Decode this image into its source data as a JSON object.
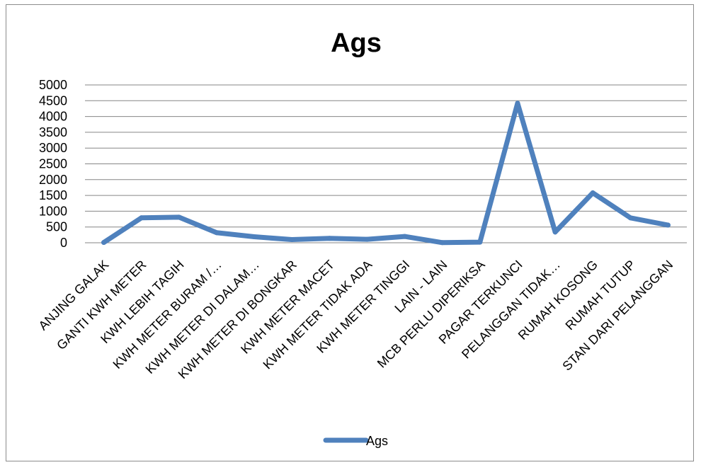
{
  "chart_data": {
    "type": "line",
    "title": "Ags",
    "xlabel": "",
    "ylabel": "",
    "ylim": [
      0,
      5000
    ],
    "yticks": [
      0,
      500,
      1000,
      1500,
      2000,
      2500,
      3000,
      3500,
      4000,
      4500,
      5000
    ],
    "grid": true,
    "legend_position": "bottom",
    "categories": [
      "ANJING GALAK",
      "GANTI KWH METER",
      "KWH LEBIH TAGIH",
      "KWH METER BURAM /…",
      "KWH METER DI DALAM…",
      "KWH METER DI BONGKAR",
      "KWH METER MACET",
      "KWH METER TIDAK ADA",
      "KWH METER TINGGI",
      "LAIN - LAIN",
      "MCB PERLU DIPERIKSA",
      "PAGAR TERKUNCI",
      "PELANGGAN TIDAK…",
      "RUMAH KOSONG",
      "RUMAH TUTUP",
      "STAN DARI PELANGGAN"
    ],
    "series": [
      {
        "name": "Ags",
        "color": "#4f81bd",
        "values": [
          10,
          790,
          810,
          320,
          190,
          100,
          140,
          110,
          200,
          5,
          20,
          4420,
          340,
          1580,
          790,
          560
        ]
      }
    ]
  }
}
